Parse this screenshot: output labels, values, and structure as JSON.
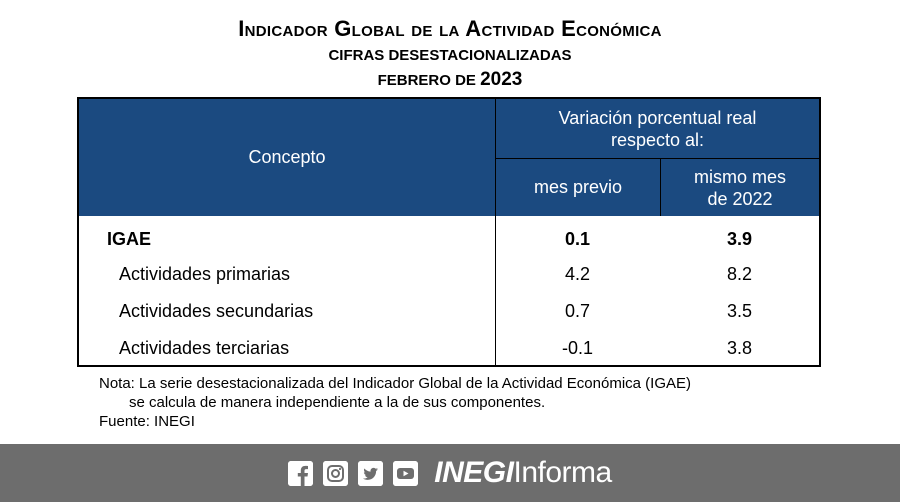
{
  "header": {
    "title": "Indicador Global de la Actividad Económica",
    "subtitle": "CIFRAS DESESTACIONALIZADAS",
    "period_prefix": "FEBRERO DE",
    "period_year": "2023"
  },
  "table": {
    "col_concepto": "Concepto",
    "col_variacion_line1": "Variación porcentual real",
    "col_variacion_line2": "respecto al:",
    "col_mes_previo": "mes previo",
    "col_mismo_mes_line1": "mismo mes",
    "col_mismo_mes_line2": "de 2022",
    "rows": [
      {
        "concepto": "IGAE",
        "mes_previo": "0.1",
        "mismo_mes": "3.9"
      },
      {
        "concepto": "Actividades primarias",
        "mes_previo": "4.2",
        "mismo_mes": "8.2"
      },
      {
        "concepto": "Actividades secundarias",
        "mes_previo": "0.7",
        "mismo_mes": "3.5"
      },
      {
        "concepto": "Actividades terciarias",
        "mes_previo": "-0.1",
        "mismo_mes": "3.8"
      }
    ]
  },
  "notes": {
    "nota_line1": "Nota: La serie desestacionalizada del Indicador Global de la Actividad Económica (IGAE)",
    "nota_line2": "se calcula de manera independiente a la de sus componentes.",
    "fuente": "Fuente: INEGI"
  },
  "footer": {
    "icons": [
      "facebook-icon",
      "instagram-icon",
      "twitter-icon",
      "youtube-icon"
    ],
    "brand_bold": "INEGI",
    "brand_regular": "Informa",
    "background_color": "#6d6d6d"
  },
  "colors": {
    "table_header": "#1b4a80"
  }
}
